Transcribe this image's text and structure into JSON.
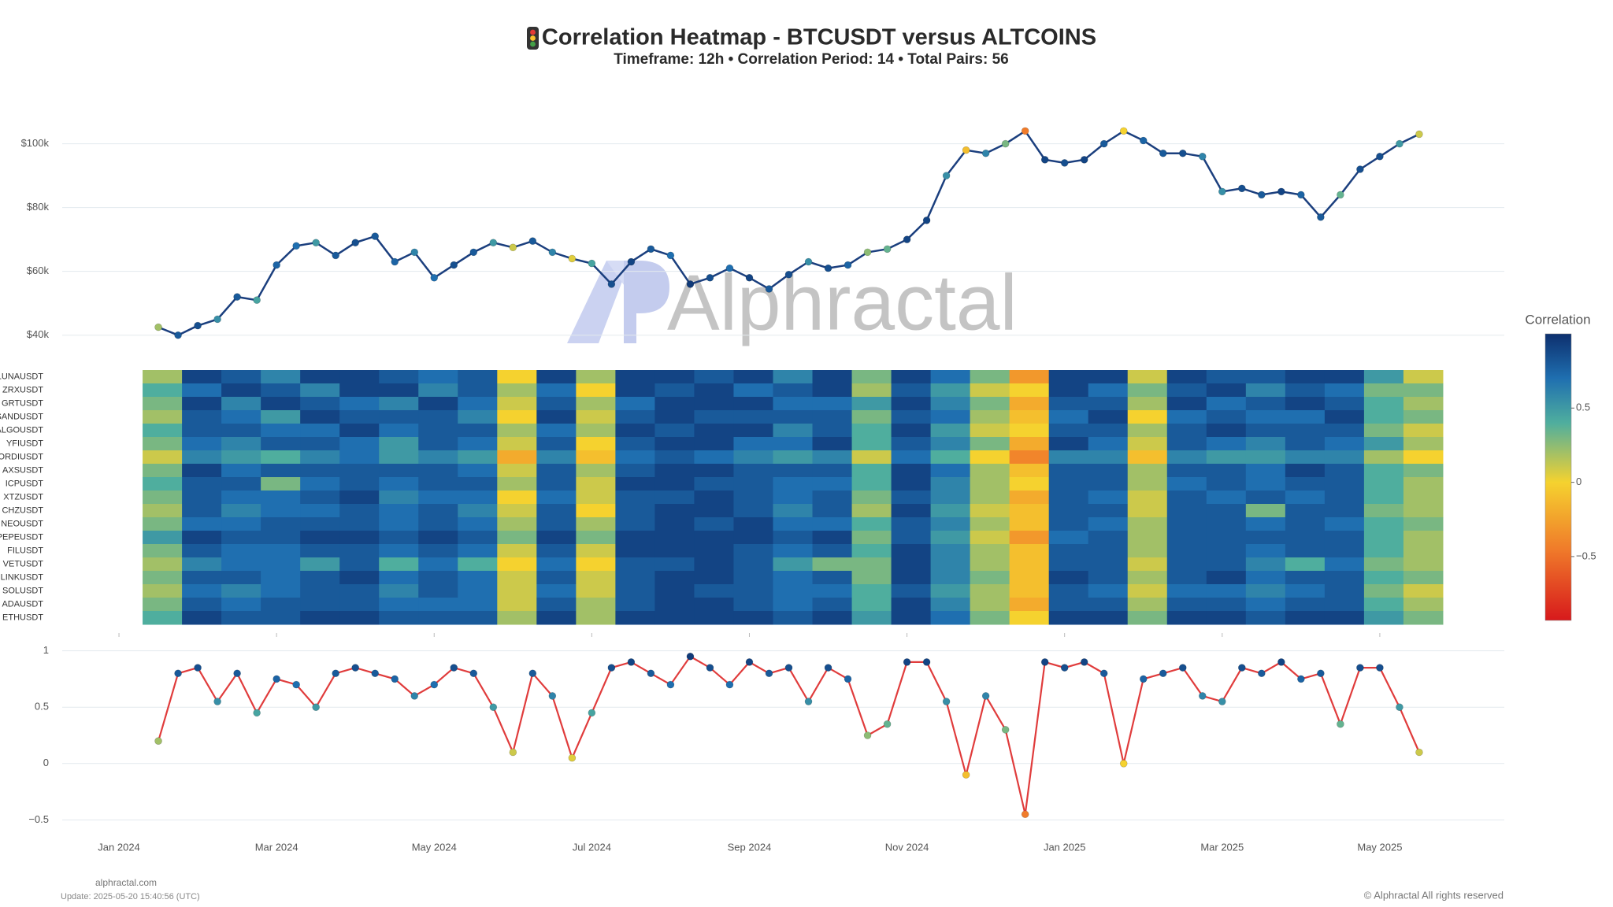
{
  "chart_data": [
    {
      "type": "line",
      "title": "Correlation Heatmap - BTCUSDT versus ALTCOINS",
      "subtitle": "Timeframe: 12h • Correlation Period: 14  • Total Pairs: 56",
      "x": [
        0.5,
        0.75,
        1,
        1.25,
        1.5,
        1.75,
        2,
        2.25,
        2.5,
        2.75,
        3,
        3.25,
        3.5,
        3.75,
        4,
        4.25,
        4.5,
        4.75,
        5,
        5.25,
        5.5,
        5.75,
        6,
        6.25,
        6.5,
        6.75,
        7,
        7.25,
        7.5,
        7.75,
        8,
        8.25,
        8.5,
        8.75,
        9,
        9.25,
        9.5,
        9.75,
        10,
        10.25,
        10.5,
        10.75,
        11,
        11.25,
        11.5,
        11.75,
        12,
        12.25,
        12.5,
        12.75,
        13,
        13.25,
        13.5,
        13.75,
        14,
        14.25,
        14.5,
        14.75,
        15,
        15.25,
        15.5,
        15.75,
        16,
        16.25,
        16.5
      ],
      "values": [
        42500,
        40000,
        43000,
        45000,
        52000,
        51000,
        62000,
        68000,
        69000,
        65000,
        69000,
        71000,
        63000,
        66000,
        58000,
        62000,
        66000,
        69000,
        67500,
        69500,
        66000,
        64000,
        62500,
        56000,
        63000,
        67000,
        65000,
        56000,
        58000,
        61000,
        58000,
        54500,
        59000,
        63000,
        61000,
        62000,
        66000,
        67000,
        70000,
        76000,
        90000,
        98000,
        97000,
        100000,
        104000,
        95000,
        94000,
        95000,
        100000,
        104000,
        101000,
        97000,
        97000,
        96000,
        85000,
        86000,
        84000,
        85000,
        84000,
        77000,
        84000,
        92000,
        96000,
        100000,
        103000
      ],
      "ylim": [
        35000,
        111000
      ],
      "yticks": [
        {
          "value": 40000,
          "label": "$40k"
        },
        {
          "value": 60000,
          "label": "$60k"
        },
        {
          "value": 80000,
          "label": "$80k"
        },
        {
          "value": 100000,
          "label": "$100k"
        }
      ],
      "grid": true,
      "color": "#1b3f7e"
    },
    {
      "type": "heatmap",
      "x": [
        0.55,
        1.05,
        1.55,
        2.05,
        2.55,
        3.05,
        3.55,
        4.05,
        4.55,
        5.05,
        5.55,
        6.05,
        6.55,
        7.05,
        7.55,
        8.05,
        8.55,
        9.05,
        9.55,
        10.05,
        10.55,
        11.05,
        11.55,
        12.05,
        12.55,
        13.05,
        13.55,
        14.05,
        14.55,
        15.05,
        15.55,
        16.05,
        16.55
      ],
      "series": [
        {
          "name": "LUNAUSDT",
          "values": [
            0.2,
            0.9,
            0.8,
            0.6,
            0.9,
            0.9,
            0.8,
            0.7,
            0.8,
            0.0,
            0.9,
            0.2,
            0.9,
            0.9,
            0.8,
            0.9,
            0.6,
            0.9,
            0.3,
            0.9,
            0.7,
            0.3,
            -0.3,
            0.9,
            0.9,
            0.1,
            0.9,
            0.8,
            0.8,
            0.9,
            0.9,
            0.5,
            0.1
          ]
        },
        {
          "name": "ZRXUSDT",
          "values": [
            0.4,
            0.7,
            0.9,
            0.8,
            0.6,
            0.9,
            0.9,
            0.6,
            0.8,
            0.2,
            0.7,
            0.0,
            0.9,
            0.8,
            0.9,
            0.7,
            0.8,
            0.9,
            0.2,
            0.8,
            0.5,
            0.1,
            0.0,
            0.9,
            0.7,
            0.3,
            0.8,
            0.9,
            0.6,
            0.8,
            0.7,
            0.3,
            0.3
          ]
        },
        {
          "name": "GRTUSDT",
          "values": [
            0.3,
            0.9,
            0.6,
            0.9,
            0.8,
            0.7,
            0.6,
            0.9,
            0.7,
            0.1,
            0.8,
            0.2,
            0.7,
            0.9,
            0.9,
            0.9,
            0.7,
            0.7,
            0.5,
            0.9,
            0.6,
            0.3,
            -0.2,
            0.8,
            0.8,
            0.2,
            0.9,
            0.7,
            0.8,
            0.9,
            0.8,
            0.4,
            0.2
          ]
        },
        {
          "name": "SANDUSDT",
          "values": [
            0.2,
            0.8,
            0.7,
            0.5,
            0.9,
            0.8,
            0.8,
            0.8,
            0.6,
            0.0,
            0.9,
            0.1,
            0.8,
            0.9,
            0.8,
            0.8,
            0.8,
            0.8,
            0.3,
            0.8,
            0.7,
            0.2,
            -0.1,
            0.7,
            0.9,
            0.0,
            0.7,
            0.8,
            0.7,
            0.7,
            0.9,
            0.4,
            0.3
          ]
        },
        {
          "name": "ALGOUSDT",
          "values": [
            0.4,
            0.8,
            0.8,
            0.7,
            0.7,
            0.9,
            0.7,
            0.8,
            0.8,
            0.2,
            0.7,
            0.2,
            0.9,
            0.8,
            0.9,
            0.9,
            0.6,
            0.8,
            0.4,
            0.9,
            0.5,
            0.1,
            0.0,
            0.8,
            0.8,
            0.2,
            0.8,
            0.9,
            0.8,
            0.8,
            0.8,
            0.3,
            0.1
          ]
        },
        {
          "name": "YFIUSDT",
          "values": [
            0.3,
            0.7,
            0.6,
            0.8,
            0.8,
            0.7,
            0.5,
            0.8,
            0.7,
            0.1,
            0.8,
            0.0,
            0.8,
            0.9,
            0.9,
            0.7,
            0.7,
            0.9,
            0.4,
            0.8,
            0.6,
            0.3,
            -0.2,
            0.9,
            0.7,
            0.1,
            0.8,
            0.7,
            0.6,
            0.8,
            0.7,
            0.5,
            0.2
          ]
        },
        {
          "name": "ORDIUSDT",
          "values": [
            0.1,
            0.6,
            0.5,
            0.4,
            0.6,
            0.7,
            0.5,
            0.6,
            0.5,
            -0.2,
            0.6,
            -0.1,
            0.7,
            0.8,
            0.7,
            0.6,
            0.5,
            0.6,
            0.1,
            0.7,
            0.4,
            0.0,
            -0.4,
            0.6,
            0.6,
            -0.1,
            0.6,
            0.5,
            0.5,
            0.6,
            0.6,
            0.2,
            0.0
          ]
        },
        {
          "name": "AXSUSDT",
          "values": [
            0.3,
            0.9,
            0.7,
            0.8,
            0.8,
            0.8,
            0.8,
            0.8,
            0.7,
            0.1,
            0.8,
            0.2,
            0.8,
            0.9,
            0.9,
            0.8,
            0.8,
            0.8,
            0.4,
            0.9,
            0.7,
            0.2,
            -0.1,
            0.8,
            0.8,
            0.2,
            0.8,
            0.8,
            0.7,
            0.9,
            0.8,
            0.4,
            0.3
          ]
        },
        {
          "name": "ICPUSDT",
          "values": [
            0.4,
            0.8,
            0.8,
            0.3,
            0.7,
            0.8,
            0.7,
            0.8,
            0.8,
            0.2,
            0.8,
            0.1,
            0.9,
            0.9,
            0.8,
            0.8,
            0.7,
            0.7,
            0.4,
            0.9,
            0.6,
            0.2,
            0.0,
            0.8,
            0.8,
            0.2,
            0.7,
            0.8,
            0.7,
            0.8,
            0.8,
            0.4,
            0.2
          ]
        },
        {
          "name": "XTZUSDT",
          "values": [
            0.3,
            0.8,
            0.7,
            0.7,
            0.8,
            0.9,
            0.6,
            0.7,
            0.7,
            0.0,
            0.7,
            0.1,
            0.8,
            0.8,
            0.9,
            0.8,
            0.7,
            0.8,
            0.3,
            0.8,
            0.6,
            0.2,
            -0.2,
            0.8,
            0.7,
            0.1,
            0.8,
            0.7,
            0.8,
            0.7,
            0.8,
            0.4,
            0.2
          ]
        },
        {
          "name": "CHZUSDT",
          "values": [
            0.2,
            0.8,
            0.6,
            0.7,
            0.7,
            0.8,
            0.7,
            0.8,
            0.6,
            0.1,
            0.8,
            0.0,
            0.8,
            0.9,
            0.9,
            0.8,
            0.6,
            0.8,
            0.2,
            0.9,
            0.5,
            0.1,
            -0.1,
            0.8,
            0.8,
            0.1,
            0.8,
            0.8,
            0.3,
            0.8,
            0.8,
            0.3,
            0.2
          ]
        },
        {
          "name": "NEOUSDT",
          "values": [
            0.3,
            0.7,
            0.7,
            0.8,
            0.8,
            0.8,
            0.7,
            0.8,
            0.7,
            0.2,
            0.8,
            0.2,
            0.8,
            0.9,
            0.8,
            0.9,
            0.7,
            0.7,
            0.4,
            0.8,
            0.6,
            0.2,
            -0.1,
            0.8,
            0.7,
            0.2,
            0.8,
            0.8,
            0.7,
            0.8,
            0.7,
            0.4,
            0.3
          ]
        },
        {
          "name": "PEPEUSDT",
          "values": [
            0.5,
            0.9,
            0.8,
            0.8,
            0.9,
            0.9,
            0.8,
            0.9,
            0.8,
            0.3,
            0.9,
            0.3,
            0.9,
            0.9,
            0.9,
            0.9,
            0.8,
            0.9,
            0.3,
            0.8,
            0.5,
            0.1,
            -0.3,
            0.7,
            0.8,
            0.2,
            0.8,
            0.8,
            0.8,
            0.8,
            0.8,
            0.4,
            0.2
          ]
        },
        {
          "name": "FILUSDT",
          "values": [
            0.3,
            0.8,
            0.7,
            0.7,
            0.8,
            0.8,
            0.7,
            0.8,
            0.7,
            0.1,
            0.8,
            0.1,
            0.9,
            0.9,
            0.9,
            0.8,
            0.7,
            0.8,
            0.4,
            0.9,
            0.6,
            0.2,
            -0.1,
            0.8,
            0.8,
            0.2,
            0.8,
            0.8,
            0.7,
            0.8,
            0.8,
            0.4,
            0.2
          ]
        },
        {
          "name": "VETUSDT",
          "values": [
            0.2,
            0.6,
            0.7,
            0.7,
            0.5,
            0.8,
            0.4,
            0.7,
            0.4,
            0.0,
            0.7,
            0.0,
            0.8,
            0.8,
            0.9,
            0.8,
            0.5,
            0.3,
            0.3,
            0.9,
            0.6,
            0.2,
            -0.1,
            0.8,
            0.8,
            0.1,
            0.8,
            0.8,
            0.6,
            0.4,
            0.7,
            0.3,
            0.2
          ]
        },
        {
          "name": "LINKUSDT",
          "values": [
            0.3,
            0.8,
            0.8,
            0.7,
            0.8,
            0.9,
            0.7,
            0.8,
            0.7,
            0.1,
            0.8,
            0.1,
            0.8,
            0.9,
            0.9,
            0.8,
            0.7,
            0.8,
            0.3,
            0.9,
            0.6,
            0.3,
            -0.1,
            0.9,
            0.8,
            0.2,
            0.8,
            0.9,
            0.7,
            0.8,
            0.8,
            0.4,
            0.3
          ]
        },
        {
          "name": "SOLUSDT",
          "values": [
            0.2,
            0.7,
            0.6,
            0.7,
            0.8,
            0.8,
            0.6,
            0.8,
            0.7,
            0.1,
            0.7,
            0.1,
            0.8,
            0.9,
            0.8,
            0.8,
            0.7,
            0.7,
            0.4,
            0.8,
            0.5,
            0.2,
            -0.1,
            0.8,
            0.7,
            0.1,
            0.7,
            0.7,
            0.6,
            0.7,
            0.8,
            0.3,
            0.1
          ]
        },
        {
          "name": "ADAUSDT",
          "values": [
            0.3,
            0.8,
            0.7,
            0.8,
            0.8,
            0.8,
            0.7,
            0.7,
            0.7,
            0.1,
            0.8,
            0.2,
            0.8,
            0.9,
            0.9,
            0.8,
            0.7,
            0.8,
            0.4,
            0.9,
            0.6,
            0.2,
            -0.2,
            0.8,
            0.8,
            0.2,
            0.8,
            0.8,
            0.7,
            0.8,
            0.8,
            0.4,
            0.2
          ]
        },
        {
          "name": "ETHUSDT",
          "values": [
            0.4,
            0.9,
            0.8,
            0.8,
            0.9,
            0.9,
            0.8,
            0.8,
            0.8,
            0.2,
            0.9,
            0.2,
            0.9,
            0.9,
            0.9,
            0.9,
            0.8,
            0.9,
            0.5,
            0.9,
            0.7,
            0.3,
            0.0,
            0.9,
            0.9,
            0.3,
            0.9,
            0.9,
            0.8,
            0.9,
            0.9,
            0.5,
            0.3
          ]
        }
      ],
      "zlim": [
        -0.93,
        1
      ],
      "colorscale": [
        [
          -0.93,
          "#d7191c"
        ],
        [
          -0.45,
          "#f07b2a"
        ],
        [
          0,
          "#f5d22f"
        ],
        [
          0.4,
          "#4fae9e"
        ],
        [
          0.7,
          "#1f6fb0"
        ],
        [
          1,
          "#0d2f6e"
        ]
      ],
      "colorbar_title": "Correlation",
      "colorbar_ticks": [
        0.5,
        0,
        {
          "value": -0.5,
          "label": "−0.5"
        }
      ]
    },
    {
      "type": "line",
      "x": [
        0.5,
        0.75,
        1,
        1.25,
        1.5,
        1.75,
        2,
        2.25,
        2.5,
        2.75,
        3,
        3.25,
        3.5,
        3.75,
        4,
        4.25,
        4.5,
        4.75,
        5,
        5.25,
        5.5,
        5.75,
        6,
        6.25,
        6.5,
        6.75,
        7,
        7.25,
        7.5,
        7.75,
        8,
        8.25,
        8.5,
        8.75,
        9,
        9.25,
        9.5,
        9.75,
        10,
        10.25,
        10.5,
        10.75,
        11,
        11.25,
        11.5,
        11.75,
        12,
        12.25,
        12.5,
        12.75,
        13,
        13.25,
        13.5,
        13.75,
        14,
        14.25,
        14.5,
        14.75,
        15,
        15.25,
        15.5,
        15.75,
        16,
        16.25,
        16.5
      ],
      "values": [
        0.2,
        0.8,
        0.85,
        0.55,
        0.8,
        0.45,
        0.75,
        0.7,
        0.5,
        0.8,
        0.85,
        0.8,
        0.75,
        0.6,
        0.7,
        0.85,
        0.8,
        0.5,
        0.1,
        0.8,
        0.6,
        0.05,
        0.45,
        0.85,
        0.9,
        0.8,
        0.7,
        0.95,
        0.85,
        0.7,
        0.9,
        0.8,
        0.85,
        0.55,
        0.85,
        0.75,
        0.25,
        0.35,
        0.9,
        0.9,
        0.55,
        -0.1,
        0.6,
        0.3,
        -0.45,
        0.9,
        0.85,
        0.9,
        0.8,
        0.0,
        0.75,
        0.8,
        0.85,
        0.6,
        0.55,
        0.85,
        0.8,
        0.9,
        0.75,
        0.8,
        0.35,
        0.85,
        0.85,
        0.5,
        0.1
      ],
      "ylim": [
        -0.56,
        1.13
      ],
      "yticks": [
        {
          "value": -0.5,
          "label": "−0.5"
        },
        0,
        0.5,
        1
      ],
      "xlim": [
        -0.72,
        17.58
      ],
      "xticks": [
        {
          "value": 0,
          "label": "Jan 2024"
        },
        {
          "value": 2,
          "label": "Mar 2024"
        },
        {
          "value": 4,
          "label": "May 2024"
        },
        {
          "value": 6,
          "label": "Jul 2024"
        },
        {
          "value": 8,
          "label": "Sep 2024"
        },
        {
          "value": 10,
          "label": "Nov 2024"
        },
        {
          "value": 12,
          "label": "Jan 2025"
        },
        {
          "value": 14,
          "label": "Mar 2025"
        },
        {
          "value": 16,
          "label": "May 2025"
        }
      ],
      "grid": true,
      "color": "#e03c3c"
    }
  ],
  "watermark": "Alphractal",
  "footer": {
    "site": "alphractal.com",
    "update": "Update: 2025-05-20 15:40:56 (UTC)",
    "copyright": "© Alphractal All rights reserved"
  }
}
